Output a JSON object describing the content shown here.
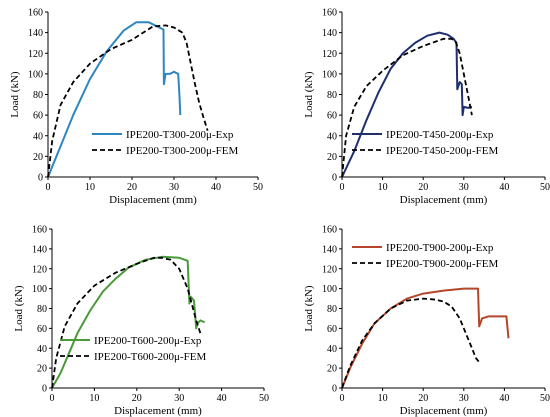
{
  "chart_data": [
    {
      "type": "line",
      "xlabel": "Displacement (mm)",
      "ylabel": "Load (kN)",
      "xlim": [
        0,
        50
      ],
      "ylim": [
        0,
        160
      ],
      "xticks": [
        0,
        10,
        20,
        30,
        40,
        50
      ],
      "yticks": [
        0,
        20,
        40,
        60,
        80,
        100,
        120,
        140,
        160
      ],
      "grid": false,
      "legend_position": "center",
      "series": [
        {
          "name": "IPE200-T300-200μ-Exp",
          "color": "#2e86c1",
          "style": "solid",
          "x": [
            0,
            3,
            6,
            10,
            14,
            18,
            21,
            24,
            26.5,
            27.5,
            27.6,
            28,
            29,
            30,
            31,
            31.3,
            31.5
          ],
          "y": [
            0,
            30,
            60,
            95,
            122,
            142,
            150,
            150,
            145,
            143,
            90,
            100,
            100,
            102,
            100,
            78,
            60
          ]
        },
        {
          "name": "IPE200-T300-200μ-FEM",
          "color": "#000000",
          "style": "dashed",
          "x": [
            0,
            1,
            3,
            6,
            10,
            15,
            20,
            25,
            28,
            30,
            32,
            33,
            34,
            35,
            36,
            37,
            38
          ],
          "y": [
            0,
            35,
            70,
            92,
            110,
            124,
            133,
            146,
            147,
            145,
            140,
            130,
            110,
            90,
            72,
            58,
            45
          ]
        }
      ]
    },
    {
      "type": "line",
      "xlabel": "Displacement (mm)",
      "ylabel": "Load (kN)",
      "xlim": [
        0,
        50
      ],
      "ylim": [
        0,
        160
      ],
      "xticks": [
        0,
        10,
        20,
        30,
        40,
        50
      ],
      "yticks": [
        0,
        20,
        40,
        60,
        80,
        100,
        120,
        140,
        160
      ],
      "grid": false,
      "legend_position": "center",
      "series": [
        {
          "name": "IPE200-T450-200μ-Exp",
          "color": "#1f2f6e",
          "style": "solid",
          "x": [
            0,
            3,
            6,
            9,
            12,
            15,
            18,
            21,
            24,
            26,
            27.5,
            28.2,
            28.4,
            29,
            29.5,
            29.7,
            30,
            31,
            32
          ],
          "y": [
            0,
            25,
            55,
            82,
            105,
            120,
            130,
            137,
            140,
            138,
            134,
            130,
            85,
            92,
            90,
            60,
            68,
            67,
            68
          ]
        },
        {
          "name": "IPE200-T450-200μ-FEM",
          "color": "#000000",
          "style": "dashed",
          "x": [
            0,
            1,
            3,
            6,
            10,
            15,
            20,
            25,
            27,
            28,
            29,
            30,
            31,
            32
          ],
          "y": [
            0,
            40,
            68,
            88,
            103,
            118,
            127,
            134,
            134,
            131,
            120,
            100,
            80,
            60
          ]
        }
      ]
    },
    {
      "type": "line",
      "xlabel": "Displacement (mm)",
      "ylabel": "Load (kN)",
      "xlim": [
        0,
        50
      ],
      "ylim": [
        0,
        160
      ],
      "xticks": [
        0,
        10,
        20,
        30,
        40,
        50
      ],
      "yticks": [
        0,
        20,
        40,
        60,
        80,
        100,
        120,
        140,
        160
      ],
      "grid": false,
      "legend_position": "bottom-left",
      "series": [
        {
          "name": "IPE200-T600-200μ-Exp",
          "color": "#4a9a3a",
          "style": "solid",
          "x": [
            0,
            2,
            4,
            6,
            9,
            12,
            15,
            18,
            22,
            26,
            30,
            32,
            32.4,
            32.7,
            33.5,
            34,
            34.3,
            35,
            36
          ],
          "y": [
            0,
            15,
            35,
            55,
            78,
            97,
            110,
            121,
            129,
            132,
            131,
            128,
            85,
            92,
            88,
            60,
            65,
            68,
            66
          ]
        },
        {
          "name": "IPE200-T600-200μ-FEM",
          "color": "#000000",
          "style": "dashed",
          "x": [
            0,
            1,
            3,
            6,
            10,
            15,
            20,
            24,
            26,
            28,
            30,
            32,
            34,
            35
          ],
          "y": [
            0,
            30,
            62,
            85,
            103,
            116,
            125,
            131,
            131,
            129,
            120,
            100,
            68,
            55
          ]
        }
      ]
    },
    {
      "type": "line",
      "xlabel": "Displacement (mm)",
      "ylabel": "Load (kN)",
      "xlim": [
        0,
        50
      ],
      "ylim": [
        0,
        160
      ],
      "xticks": [
        0,
        10,
        20,
        30,
        40,
        50
      ],
      "yticks": [
        0,
        20,
        40,
        60,
        80,
        100,
        120,
        140,
        160
      ],
      "grid": false,
      "legend_position": "top-left",
      "series": [
        {
          "name": "IPE200-T900-200μ-Exp",
          "color": "#b5462a",
          "style": "solid",
          "x": [
            0,
            2,
            5,
            8,
            12,
            16,
            20,
            25,
            30,
            33.5,
            33.8,
            34.5,
            36,
            38,
            40.5,
            41
          ],
          "y": [
            0,
            20,
            45,
            65,
            80,
            90,
            95,
            98,
            100,
            100,
            62,
            70,
            72,
            72,
            72,
            50
          ]
        },
        {
          "name": "IPE200-T900-200μ-FEM",
          "color": "#000000",
          "style": "dashed",
          "x": [
            0,
            2,
            5,
            8,
            12,
            16,
            20,
            23,
            25,
            27,
            29,
            31,
            33,
            34
          ],
          "y": [
            0,
            22,
            48,
            65,
            80,
            88,
            90,
            89,
            87,
            82,
            70,
            50,
            30,
            25
          ]
        }
      ]
    }
  ]
}
